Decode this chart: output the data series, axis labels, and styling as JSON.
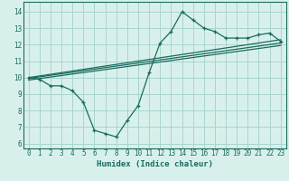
{
  "xlabel": "Humidex (Indice chaleur)",
  "ylabel": "",
  "xlim": [
    -0.5,
    23.5
  ],
  "ylim": [
    5.7,
    14.6
  ],
  "yticks": [
    6,
    7,
    8,
    9,
    10,
    11,
    12,
    13,
    14
  ],
  "xticks": [
    0,
    1,
    2,
    3,
    4,
    5,
    6,
    7,
    8,
    9,
    10,
    11,
    12,
    13,
    14,
    15,
    16,
    17,
    18,
    19,
    20,
    21,
    22,
    23
  ],
  "bg_color": "#d8f0ec",
  "grid_color": "#aad4ce",
  "line_color": "#1a6b5e",
  "zigzag_x": [
    0,
    1,
    2,
    3,
    4,
    5,
    6,
    7,
    8,
    9,
    10,
    11,
    12,
    13,
    14,
    15,
    16,
    17,
    18,
    19,
    20,
    21,
    22,
    23
  ],
  "zigzag_y": [
    10.0,
    9.9,
    9.5,
    9.5,
    9.2,
    8.5,
    6.8,
    6.6,
    6.4,
    7.4,
    8.3,
    10.3,
    12.1,
    12.8,
    14.0,
    13.5,
    13.0,
    12.8,
    12.4,
    12.4,
    12.4,
    12.6,
    12.7,
    12.2
  ],
  "line1_x": [
    0,
    23
  ],
  "line1_y": [
    9.95,
    12.1
  ],
  "line2_x": [
    0,
    23
  ],
  "line2_y": [
    10.0,
    12.3
  ],
  "line3_x": [
    0,
    23
  ],
  "line3_y": [
    9.85,
    11.95
  ],
  "tick_fontsize": 5.5,
  "xlabel_fontsize": 6.5
}
